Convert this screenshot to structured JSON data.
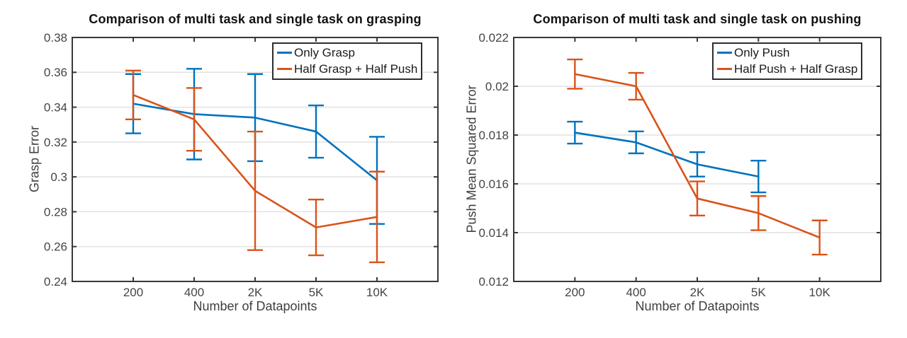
{
  "colors": {
    "blue": "#0072BD",
    "orange": "#D95319",
    "axis": "#383838",
    "grid": "#e2e2e2",
    "tick_text": "#454545",
    "background": "#ffffff"
  },
  "chart_data": [
    {
      "type": "line",
      "title": "Comparison of multi task and single task on grasping",
      "xlabel": "Number of Datapoints",
      "ylabel": "Grasp Error",
      "categories": [
        "200",
        "400",
        "2K",
        "5K",
        "10K"
      ],
      "ylim": [
        0.24,
        0.38
      ],
      "yticks": [
        0.24,
        0.26,
        0.28,
        0.3,
        0.32,
        0.34,
        0.36,
        0.38
      ],
      "ytick_labels": [
        "0.24",
        "0.26",
        "0.28",
        "0.3",
        "0.32",
        "0.34",
        "0.36",
        "0.38"
      ],
      "grid": "horizontal",
      "legend_position": "top-right",
      "series": [
        {
          "name": "Only Grasp",
          "color_key": "blue",
          "x_indices": [
            0,
            1,
            2,
            3,
            4
          ],
          "values": [
            0.342,
            0.336,
            0.334,
            0.326,
            0.298
          ],
          "errors": [
            0.017,
            0.026,
            0.025,
            0.015,
            0.025
          ]
        },
        {
          "name": "Half Grasp + Half Push",
          "color_key": "orange",
          "x_indices": [
            0,
            1,
            2,
            3,
            4
          ],
          "values": [
            0.347,
            0.333,
            0.292,
            0.271,
            0.277
          ],
          "errors": [
            0.014,
            0.018,
            0.034,
            0.016,
            0.026
          ]
        }
      ]
    },
    {
      "type": "line",
      "title": "Comparison of multi task and single task on pushing",
      "xlabel": "Number of Datapoints",
      "ylabel": "Push Mean Squared Error",
      "categories": [
        "200",
        "400",
        "2K",
        "5K",
        "10K"
      ],
      "ylim": [
        0.012,
        0.022
      ],
      "yticks": [
        0.012,
        0.014,
        0.016,
        0.018,
        0.02,
        0.022
      ],
      "ytick_labels": [
        "0.012",
        "0.014",
        "0.016",
        "0.018",
        "0.02",
        "0.022"
      ],
      "grid": "horizontal",
      "legend_position": "top-right",
      "series": [
        {
          "name": "Only Push",
          "color_key": "blue",
          "x_indices": [
            0,
            1,
            2,
            3
          ],
          "values": [
            0.0181,
            0.0177,
            0.0168,
            0.0163
          ],
          "errors": [
            0.00045,
            0.00045,
            0.0005,
            0.00065
          ]
        },
        {
          "name": "Half Push + Half Grasp",
          "color_key": "orange",
          "x_indices": [
            0,
            1,
            2,
            3,
            4
          ],
          "values": [
            0.0205,
            0.02,
            0.0154,
            0.0148,
            0.0138
          ],
          "errors": [
            0.0006,
            0.00055,
            0.0007,
            0.0007,
            0.0007
          ]
        }
      ]
    }
  ]
}
